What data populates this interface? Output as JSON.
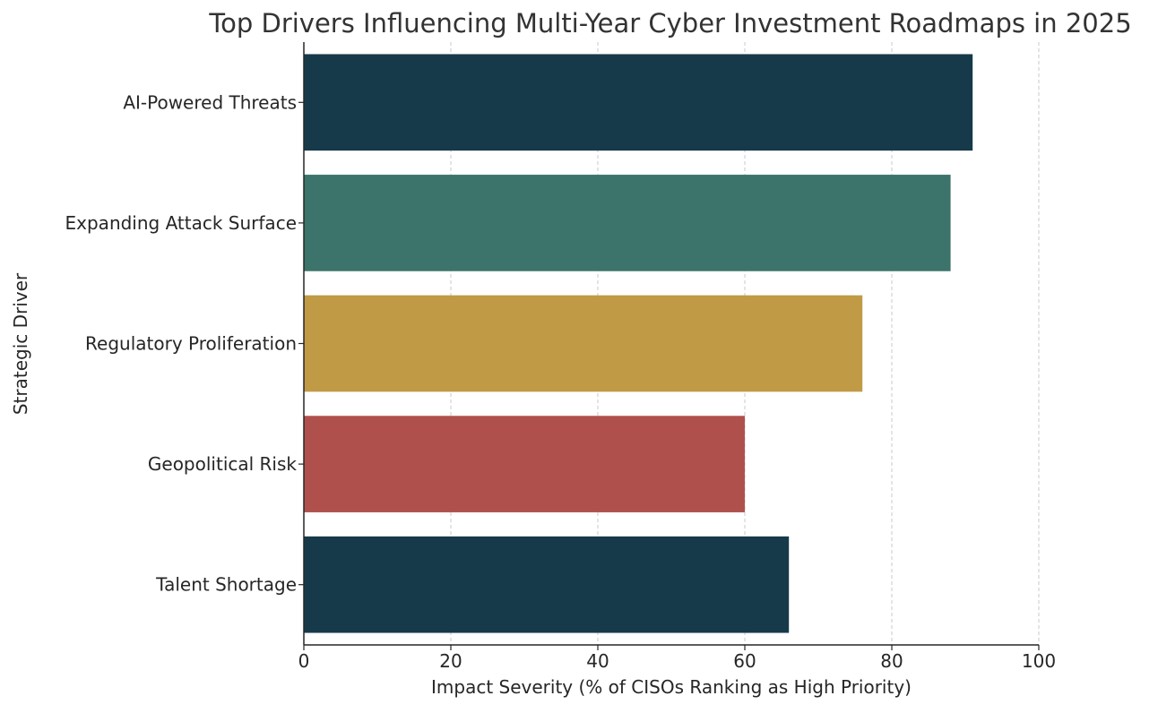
{
  "chart_data": {
    "type": "bar",
    "orientation": "horizontal",
    "title": "Top Drivers Influencing Multi-Year Cyber Investment Roadmaps in 2025",
    "xlabel": "Impact Severity (% of CISOs Ranking as High Priority)",
    "ylabel": "Strategic Driver",
    "categories": [
      "AI-Powered Threats",
      "Expanding Attack Surface",
      "Regulatory Proliferation",
      "Geopolitical Risk",
      "Talent Shortage"
    ],
    "values": [
      91,
      88,
      76,
      60,
      66
    ],
    "colors": [
      "#173a4a",
      "#3c746b",
      "#c09a45",
      "#b0504d",
      "#173a4a"
    ],
    "xlim": [
      0,
      100
    ],
    "xticks": [
      0,
      20,
      40,
      60,
      80,
      100
    ],
    "grid": "vertical dashed",
    "legend": "none"
  }
}
